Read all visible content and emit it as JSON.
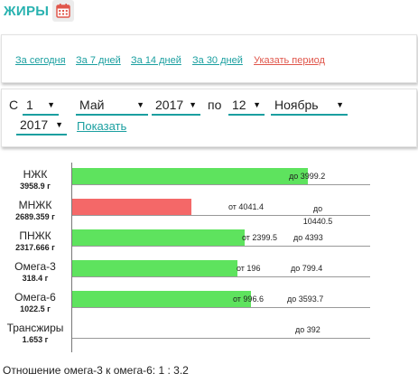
{
  "header": {
    "title": "ЖИРЫ",
    "calendar_icon": "calendar-icon"
  },
  "quick_periods": [
    {
      "label": "За сегодня"
    },
    {
      "label": "За 7 дней"
    },
    {
      "label": "За 14 дней"
    },
    {
      "label": "За 30 дней"
    },
    {
      "label": "Указать период"
    }
  ],
  "range": {
    "from_label": "С",
    "to_label": "по",
    "from_day": "1",
    "from_month": "Май",
    "from_year": "2017",
    "to_day": "12",
    "to_month": "Ноябрь",
    "to_year": "2017",
    "show_label": "Показать"
  },
  "colors": {
    "accent": "#1a9fa0",
    "title": "#29b2b0",
    "ok_bar": "#5ee35e",
    "over_bar": "#f46868",
    "custom_period": "#e0564b"
  },
  "nutrients": [
    {
      "name": "НЖК",
      "amount": "3958.9 г",
      "status": "ok",
      "fill_fraction": 0.79,
      "min_label": "",
      "max_label": "до 3999.2"
    },
    {
      "name": "МНЖК",
      "amount": "2689.359 г",
      "status": "over",
      "fill_fraction": 0.4,
      "min_label": "от 4041.4",
      "max_label": "до 10440.5"
    },
    {
      "name": "ПНЖК",
      "amount": "2317.666 г",
      "status": "ok",
      "fill_fraction": 0.58,
      "min_label": "от 2399.5",
      "max_label": "до 4393"
    },
    {
      "name": "Омега-3",
      "amount": "318.4 г",
      "status": "ok",
      "fill_fraction": 0.555,
      "min_label": "от 196",
      "max_label": "до 799.4"
    },
    {
      "name": "Омега-6",
      "amount": "1022.5 г",
      "status": "ok",
      "fill_fraction": 0.6,
      "min_label": "от 996.6",
      "max_label": "до 3593.7"
    },
    {
      "name": "Трансжиры",
      "amount": "1.653 г",
      "status": "ok",
      "fill_fraction": 0.0,
      "min_label": "",
      "max_label": "до 392"
    }
  ],
  "ratio_text": "Отношение омега-3 к омега-6: 1 : 3.2"
}
